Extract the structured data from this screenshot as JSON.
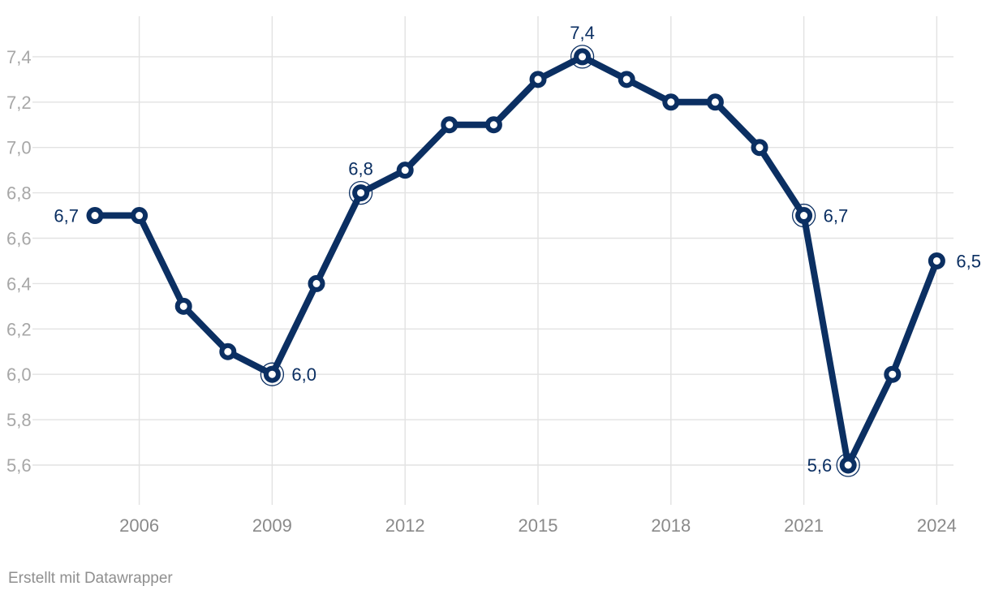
{
  "chart_data": {
    "type": "line",
    "x": [
      2005,
      2006,
      2007,
      2008,
      2009,
      2010,
      2011,
      2012,
      2013,
      2014,
      2015,
      2016,
      2017,
      2018,
      2019,
      2020,
      2021,
      2022,
      2023,
      2024
    ],
    "series": [
      {
        "values": [
          6.7,
          6.7,
          6.3,
          6.1,
          6.0,
          6.4,
          6.8,
          6.9,
          7.1,
          7.1,
          7.3,
          7.4,
          7.3,
          7.2,
          7.2,
          7.0,
          6.7,
          5.6,
          6.0,
          6.5
        ]
      }
    ],
    "x_ticks": [
      "2006",
      "2009",
      "2012",
      "2015",
      "2018",
      "2021",
      "2024"
    ],
    "y_ticks": [
      "5,6",
      "5,8",
      "6,0",
      "6,2",
      "6,4",
      "6,6",
      "6,8",
      "7,0",
      "7,2",
      "7,4"
    ],
    "ylim": [
      5.6,
      7.4
    ],
    "grid": true,
    "data_labels": [
      {
        "x": 2005,
        "text": "6,7",
        "position": "left"
      },
      {
        "x": 2009,
        "text": "6,0",
        "position": "right",
        "highlight": true
      },
      {
        "x": 2011,
        "text": "6,8",
        "position": "top",
        "highlight": true
      },
      {
        "x": 2016,
        "text": "7,4",
        "position": "top",
        "highlight": true
      },
      {
        "x": 2021,
        "text": "6,7",
        "position": "right",
        "highlight": true
      },
      {
        "x": 2022,
        "text": "5,6",
        "position": "left",
        "highlight": true
      },
      {
        "x": 2024,
        "text": "6,5",
        "position": "right"
      }
    ],
    "colors": {
      "line": "#0b2f62",
      "grid": "#e2e2e2"
    }
  },
  "footer": {
    "credit": "Erstellt mit Datawrapper"
  }
}
